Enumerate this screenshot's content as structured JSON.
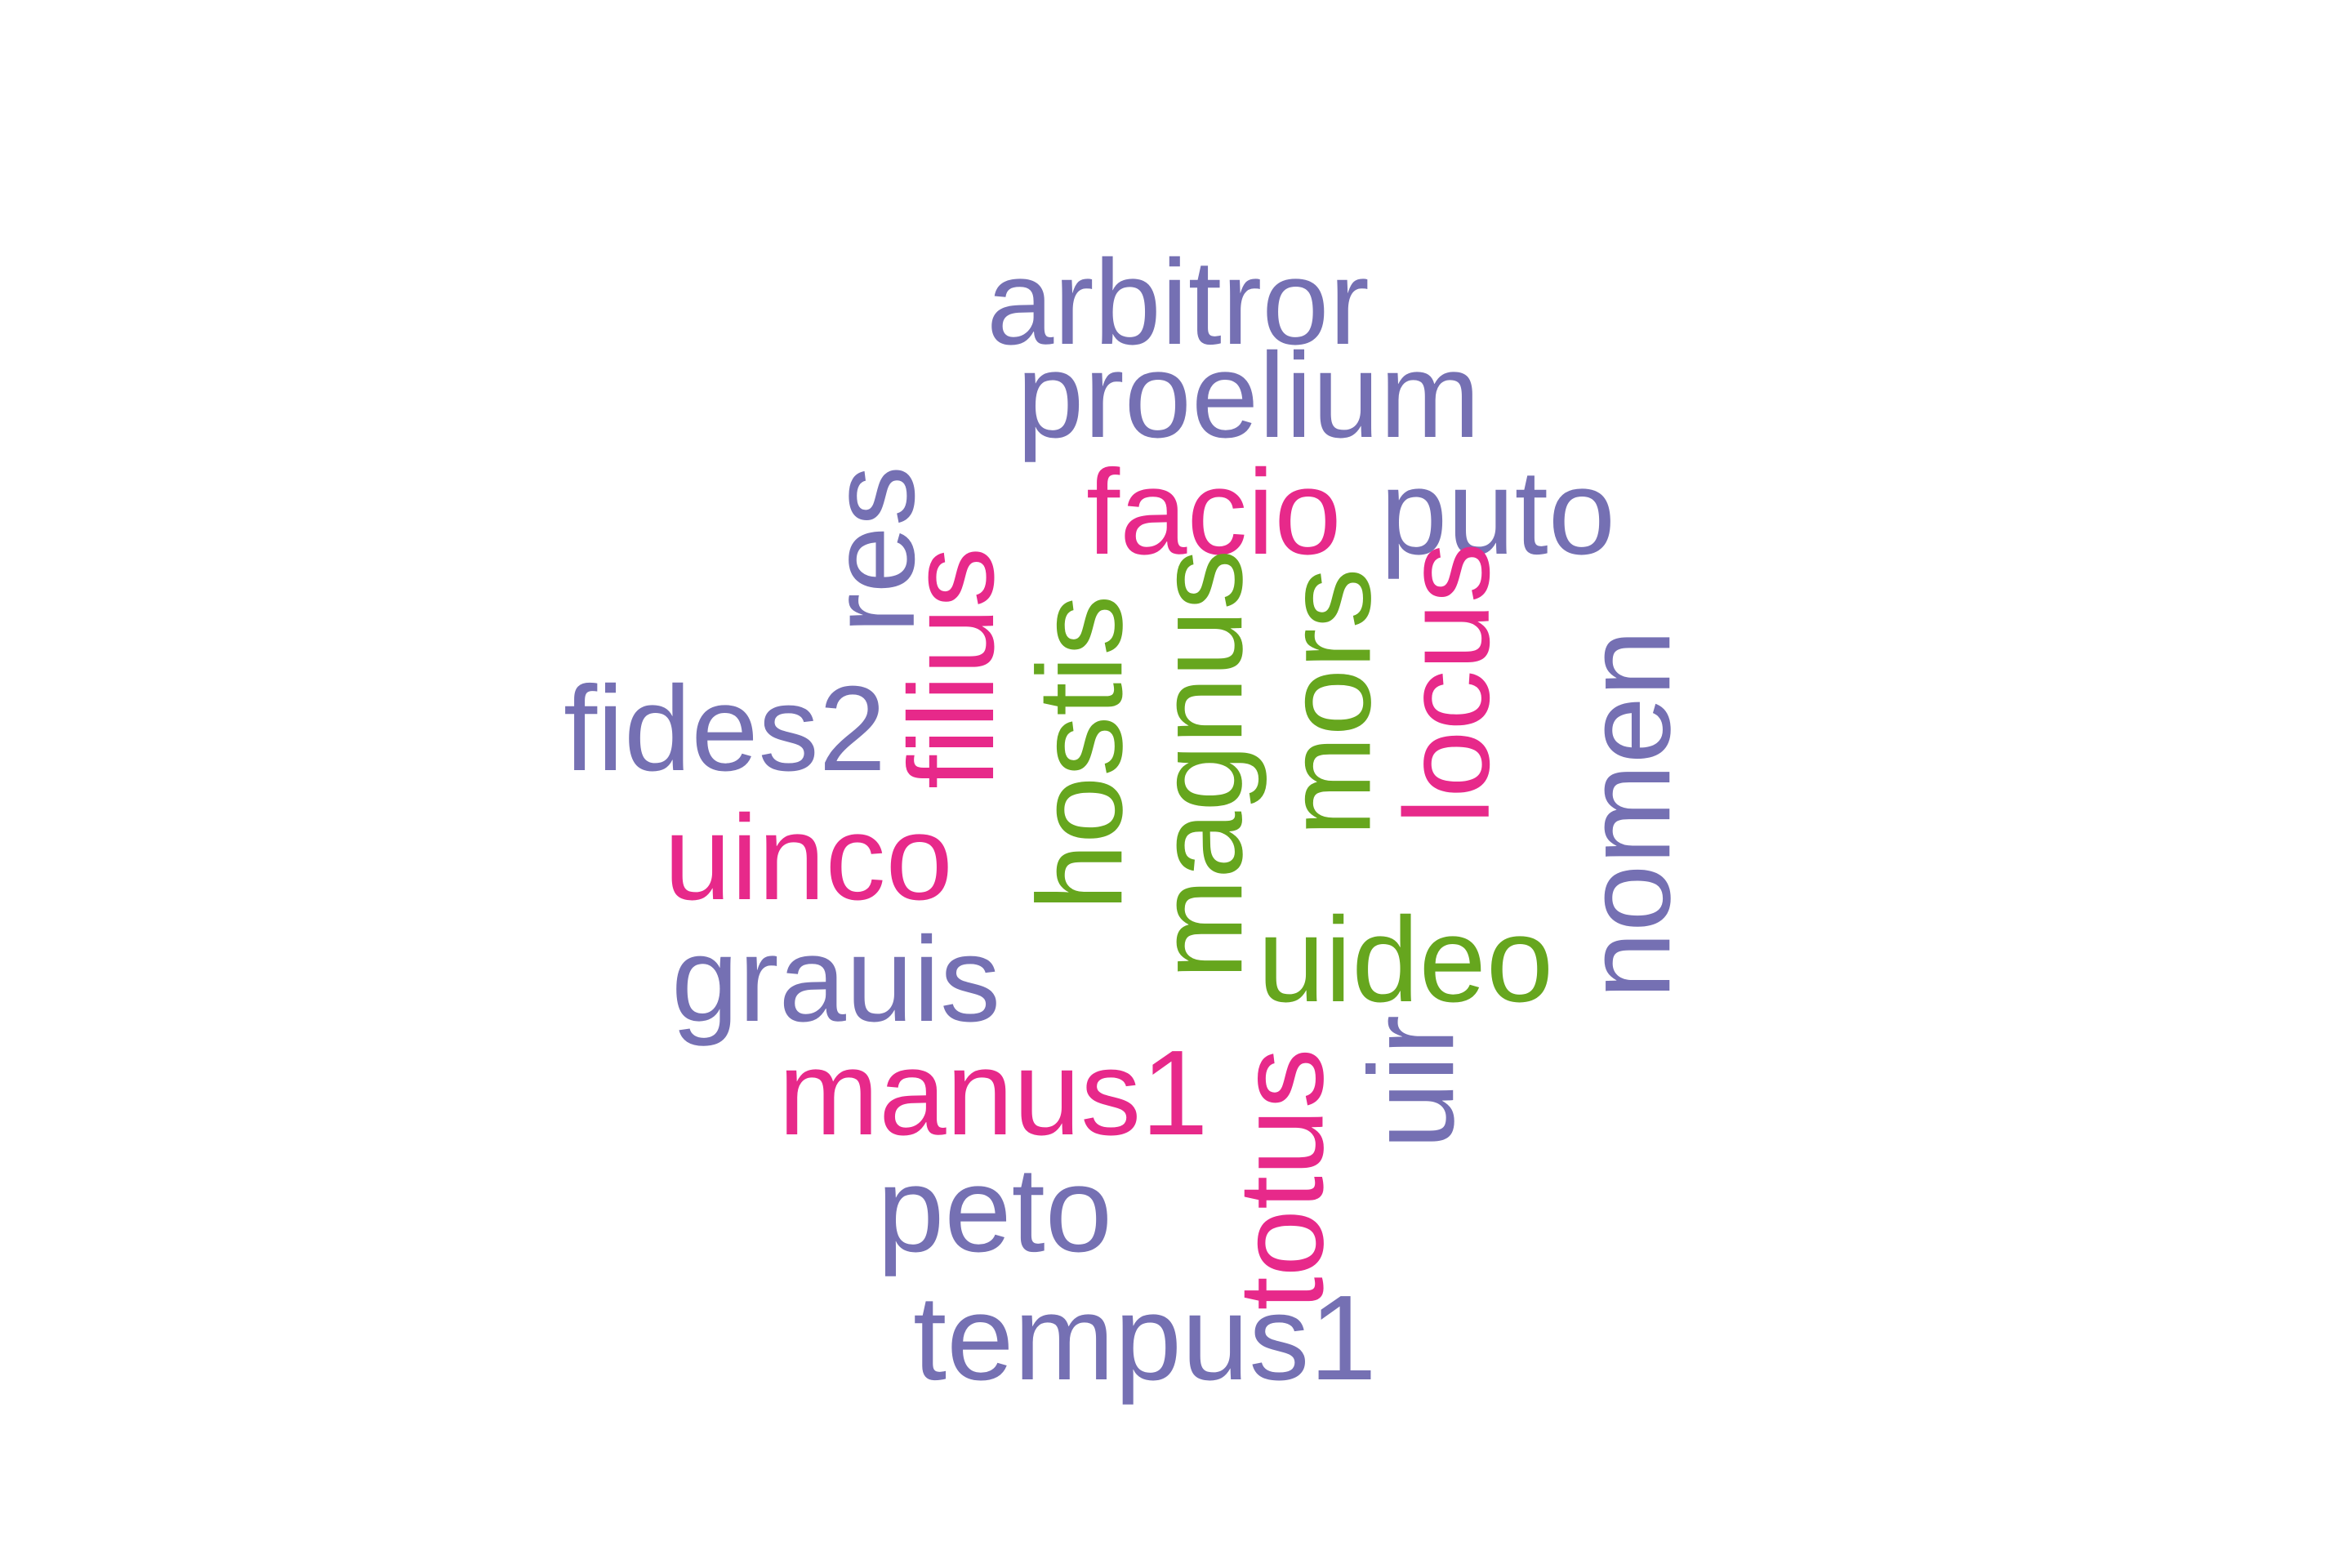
{
  "colors": {
    "purple": "#7570b3",
    "pink": "#e7298a",
    "green": "#66a61e"
  },
  "words": [
    {
      "text": "arbitror",
      "color": "purple",
      "orientation": "horizontal"
    },
    {
      "text": "proelium",
      "color": "purple",
      "orientation": "horizontal"
    },
    {
      "text": "facio",
      "color": "pink",
      "orientation": "horizontal"
    },
    {
      "text": "puto",
      "color": "purple",
      "orientation": "horizontal"
    },
    {
      "text": "res",
      "color": "purple",
      "orientation": "vertical"
    },
    {
      "text": "filius",
      "color": "pink",
      "orientation": "vertical"
    },
    {
      "text": "hostis",
      "color": "green",
      "orientation": "vertical"
    },
    {
      "text": "magnus",
      "color": "green",
      "orientation": "vertical"
    },
    {
      "text": "mors",
      "color": "green",
      "orientation": "vertical"
    },
    {
      "text": "locus",
      "color": "pink",
      "orientation": "vertical"
    },
    {
      "text": "nomen",
      "color": "purple",
      "orientation": "vertical"
    },
    {
      "text": "fides2",
      "color": "purple",
      "orientation": "horizontal"
    },
    {
      "text": "uinco",
      "color": "pink",
      "orientation": "horizontal"
    },
    {
      "text": "uideo",
      "color": "green",
      "orientation": "horizontal"
    },
    {
      "text": "grauis",
      "color": "purple",
      "orientation": "horizontal"
    },
    {
      "text": "totus",
      "color": "pink",
      "orientation": "vertical"
    },
    {
      "text": "uir",
      "color": "purple",
      "orientation": "vertical"
    },
    {
      "text": "manus1",
      "color": "pink",
      "orientation": "horizontal"
    },
    {
      "text": "peto",
      "color": "purple",
      "orientation": "horizontal"
    },
    {
      "text": "tempus1",
      "color": "purple",
      "orientation": "horizontal"
    }
  ]
}
